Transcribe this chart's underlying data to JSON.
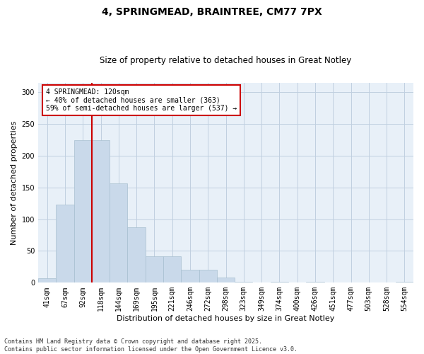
{
  "title1": "4, SPRINGMEAD, BRAINTREE, CM77 7PX",
  "title2": "Size of property relative to detached houses in Great Notley",
  "xlabel": "Distribution of detached houses by size in Great Notley",
  "ylabel": "Number of detached properties",
  "categories": [
    "41sqm",
    "67sqm",
    "92sqm",
    "118sqm",
    "144sqm",
    "169sqm",
    "195sqm",
    "221sqm",
    "246sqm",
    "272sqm",
    "298sqm",
    "323sqm",
    "349sqm",
    "374sqm",
    "400sqm",
    "426sqm",
    "451sqm",
    "477sqm",
    "503sqm",
    "528sqm",
    "554sqm"
  ],
  "values": [
    7,
    123,
    225,
    225,
    157,
    87,
    42,
    42,
    20,
    20,
    8,
    1,
    0,
    1,
    0,
    1,
    0,
    0,
    0,
    0,
    1
  ],
  "bar_color": "#c9d9ea",
  "bar_edge_color": "#a8bfd0",
  "grid_color": "#c0cfe0",
  "background_color": "#e8f0f8",
  "vline_index": 3,
  "vline_color": "#cc0000",
  "annotation_text": "4 SPRINGMEAD: 120sqm\n← 40% of detached houses are smaller (363)\n59% of semi-detached houses are larger (537) →",
  "annotation_box_color": "#ffffff",
  "annotation_box_edge": "#cc0000",
  "footer1": "Contains HM Land Registry data © Crown copyright and database right 2025.",
  "footer2": "Contains public sector information licensed under the Open Government Licence v3.0.",
  "ylim": [
    0,
    315
  ],
  "yticks": [
    0,
    50,
    100,
    150,
    200,
    250,
    300
  ],
  "title1_fontsize": 10,
  "title2_fontsize": 8.5,
  "xlabel_fontsize": 8,
  "ylabel_fontsize": 8,
  "tick_fontsize": 7,
  "annotation_fontsize": 7,
  "footer_fontsize": 6
}
